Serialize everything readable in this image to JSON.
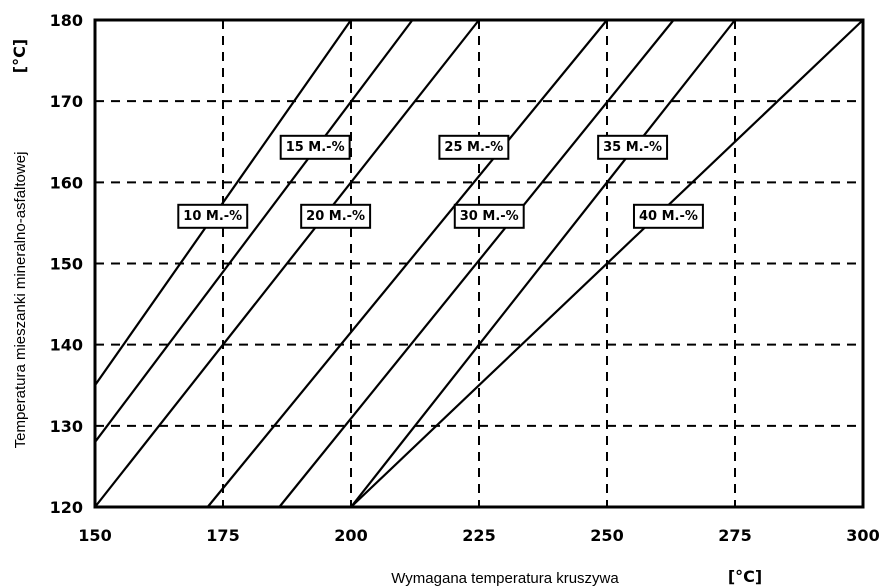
{
  "chart_data": {
    "type": "line",
    "xlabel": "Wymagana temperatura kruszywa",
    "xunit": "[°C]",
    "ylabel": "Temperatura mieszanki mineralno-asfaltowej",
    "yunit": "[°C]",
    "xlim": [
      150,
      300
    ],
    "ylim": [
      120,
      180
    ],
    "x_ticks": [
      "150",
      "175",
      "200",
      "225",
      "250",
      "275",
      "300"
    ],
    "y_ticks": [
      "120",
      "130",
      "140",
      "150",
      "160",
      "170",
      "180"
    ],
    "grid": true,
    "series": [
      {
        "name": "10 M.-%",
        "points": [
          [
            150,
            135
          ],
          [
            200,
            180
          ]
        ]
      },
      {
        "name": "15 M.-%",
        "points": [
          [
            150,
            128
          ],
          [
            212,
            180
          ]
        ]
      },
      {
        "name": "20 M.-%",
        "points": [
          [
            150,
            120
          ],
          [
            225,
            180
          ]
        ]
      },
      {
        "name": "25 M.-%",
        "points": [
          [
            172,
            120
          ],
          [
            250,
            180
          ]
        ]
      },
      {
        "name": "30 M.-%",
        "points": [
          [
            186,
            120
          ],
          [
            263,
            180
          ]
        ]
      },
      {
        "name": "35 M.-%",
        "points": [
          [
            200,
            120
          ],
          [
            275,
            180
          ]
        ]
      },
      {
        "name": "40 M.-%",
        "points": [
          [
            200,
            120
          ],
          [
            300,
            180
          ]
        ]
      }
    ],
    "series_labels": [
      {
        "text": "10 M.-%",
        "x": 173,
        "y": 156
      },
      {
        "text": "15 M.-%",
        "x": 193,
        "y": 164.5
      },
      {
        "text": "20 M.-%",
        "x": 197,
        "y": 156
      },
      {
        "text": "25 M.-%",
        "x": 224,
        "y": 164.5
      },
      {
        "text": "30 M.-%",
        "x": 227,
        "y": 156
      },
      {
        "text": "35 M.-%",
        "x": 255,
        "y": 164.5
      },
      {
        "text": "40 M.-%",
        "x": 262,
        "y": 156
      }
    ]
  }
}
